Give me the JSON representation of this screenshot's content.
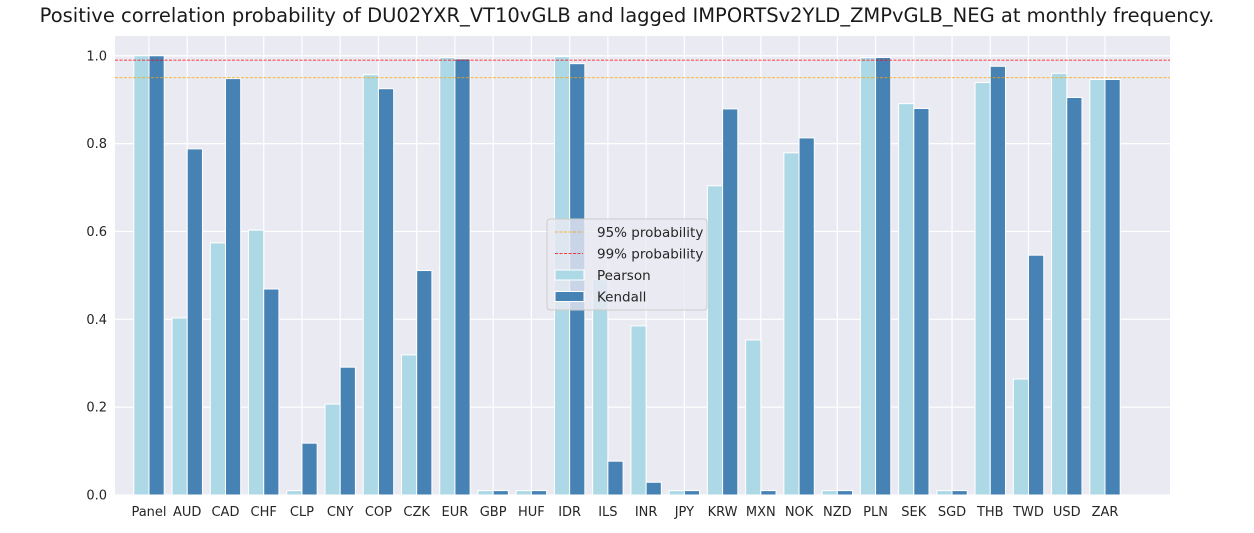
{
  "chart_data": {
    "type": "bar",
    "title": "Positive correlation probability of DU02YXR_VT10vGLB and lagged IMPORTSv2YLD_ZMPvGLB_NEG at monthly frequency.",
    "xlabel": "",
    "ylabel": "",
    "ylim": [
      0,
      1.045
    ],
    "yticks": [
      "0.0",
      "0.2",
      "0.4",
      "0.6",
      "0.8",
      "1.0"
    ],
    "grid": true,
    "legend_placement": "center",
    "categories": [
      "Panel",
      "AUD",
      "CAD",
      "CHF",
      "CLP",
      "CNY",
      "COP",
      "CZK",
      "EUR",
      "GBP",
      "HUF",
      "IDR",
      "ILS",
      "INR",
      "JPY",
      "KRW",
      "MXN",
      "NOK",
      "NZD",
      "PLN",
      "SEK",
      "SGD",
      "THB",
      "TWD",
      "USD",
      "ZAR"
    ],
    "series": [
      {
        "name": "Pearson",
        "color": "#add8e6",
        "values": [
          1.0,
          0.403,
          0.574,
          0.603,
          0.01,
          0.207,
          0.957,
          0.319,
          0.996,
          0.01,
          0.01,
          0.998,
          0.49,
          0.385,
          0.01,
          0.704,
          0.353,
          0.779,
          0.01,
          0.996,
          0.891,
          0.01,
          0.939,
          0.264,
          0.96,
          0.946
        ]
      },
      {
        "name": "Kendall",
        "color": "#4682b4",
        "values": [
          1.0,
          0.788,
          0.948,
          0.469,
          0.118,
          0.291,
          0.925,
          0.511,
          0.993,
          0.01,
          0.01,
          0.982,
          0.077,
          0.029,
          0.01,
          0.879,
          0.01,
          0.813,
          0.01,
          0.996,
          0.88,
          0.01,
          0.976,
          0.546,
          0.905,
          0.946
        ]
      }
    ],
    "reference_lines": [
      {
        "name": "95% probability",
        "value": 0.95,
        "color": "#ffa500",
        "style": "dashed"
      },
      {
        "name": "99% probability",
        "value": 0.99,
        "color": "#ff0000",
        "style": "dashed"
      }
    ],
    "background": "#eaeaf2"
  }
}
